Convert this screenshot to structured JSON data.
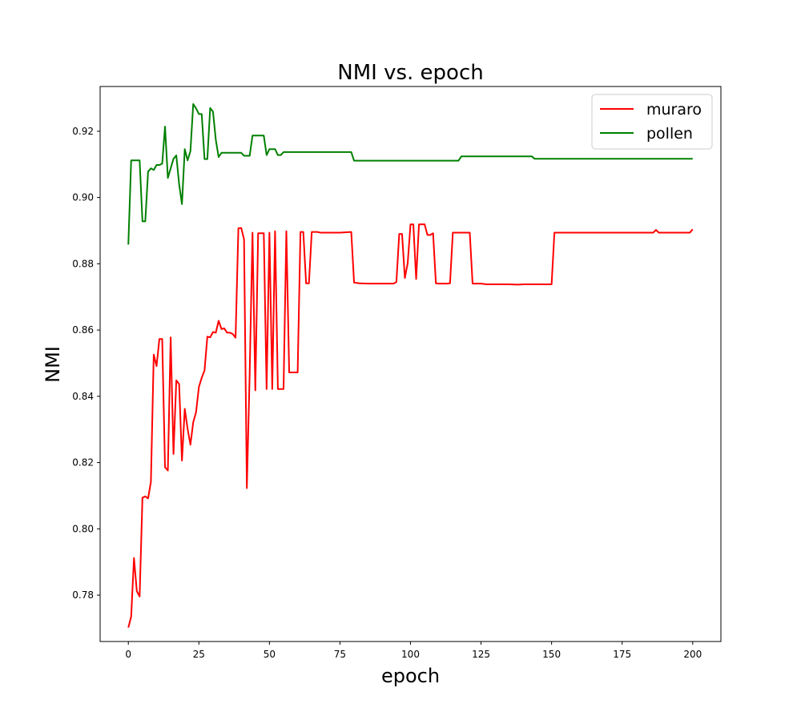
{
  "chart_data": {
    "type": "line",
    "title": "NMI vs. epoch",
    "xlabel": "epoch",
    "ylabel": "NMI",
    "xlim": [
      -10,
      210
    ],
    "ylim": [
      0.766,
      0.9335
    ],
    "x_ticks": [
      0,
      25,
      50,
      75,
      100,
      125,
      150,
      175,
      200
    ],
    "y_ticks": [
      0.78,
      0.8,
      0.82,
      0.84,
      0.86,
      0.88,
      0.9,
      0.92
    ],
    "y_tick_labels": [
      "0.78",
      "0.80",
      "0.82",
      "0.84",
      "0.86",
      "0.88",
      "0.90",
      "0.92"
    ],
    "grid": false,
    "legend_position": "top-right",
    "series": [
      {
        "name": "muraro",
        "color": "#ff0000",
        "points": [
          [
            0,
            0.7702
          ],
          [
            1,
            0.7735
          ],
          [
            2,
            0.7912
          ],
          [
            3,
            0.7812
          ],
          [
            4,
            0.7796
          ],
          [
            5,
            0.8094
          ],
          [
            6,
            0.8098
          ],
          [
            7,
            0.8092
          ],
          [
            8,
            0.8142
          ],
          [
            9,
            0.8526
          ],
          [
            10,
            0.8491
          ],
          [
            11,
            0.8573
          ],
          [
            12,
            0.8573
          ],
          [
            13,
            0.8186
          ],
          [
            14,
            0.8176
          ],
          [
            15,
            0.8578
          ],
          [
            16,
            0.8226
          ],
          [
            17,
            0.8448
          ],
          [
            18,
            0.8437
          ],
          [
            19,
            0.8206
          ],
          [
            20,
            0.8362
          ],
          [
            21,
            0.8302
          ],
          [
            22,
            0.8254
          ],
          [
            23,
            0.8322
          ],
          [
            24,
            0.8352
          ],
          [
            25,
            0.8428
          ],
          [
            26,
            0.8456
          ],
          [
            27,
            0.8478
          ],
          [
            28,
            0.858
          ],
          [
            29,
            0.8578
          ],
          [
            30,
            0.8594
          ],
          [
            31,
            0.8592
          ],
          [
            32,
            0.8628
          ],
          [
            33,
            0.8603
          ],
          [
            34,
            0.8605
          ],
          [
            35,
            0.8592
          ],
          [
            36,
            0.8592
          ],
          [
            37,
            0.8588
          ],
          [
            38,
            0.8577
          ],
          [
            39,
            0.8907
          ],
          [
            40,
            0.8908
          ],
          [
            41,
            0.8874
          ],
          [
            42,
            0.8123
          ],
          [
            43,
            0.8468
          ],
          [
            44,
            0.8894
          ],
          [
            45,
            0.8418
          ],
          [
            46,
            0.8892
          ],
          [
            47,
            0.8892
          ],
          [
            48,
            0.8892
          ],
          [
            49,
            0.8422
          ],
          [
            50,
            0.8894
          ],
          [
            51,
            0.8422
          ],
          [
            52,
            0.8898
          ],
          [
            53,
            0.8422
          ],
          [
            54,
            0.8422
          ],
          [
            55,
            0.8422
          ],
          [
            56,
            0.8898
          ],
          [
            57,
            0.8472
          ],
          [
            58,
            0.8472
          ],
          [
            59,
            0.8472
          ],
          [
            60,
            0.8472
          ],
          [
            61,
            0.8896
          ],
          [
            62,
            0.8896
          ],
          [
            63,
            0.8741
          ],
          [
            64,
            0.8741
          ],
          [
            65,
            0.8896
          ],
          [
            66,
            0.8896
          ],
          [
            67,
            0.8896
          ],
          [
            68,
            0.8894
          ],
          [
            70,
            0.8894
          ],
          [
            75,
            0.8894
          ],
          [
            79,
            0.8896
          ],
          [
            80,
            0.8743
          ],
          [
            82,
            0.8741
          ],
          [
            85,
            0.874
          ],
          [
            90,
            0.874
          ],
          [
            94,
            0.874
          ],
          [
            95,
            0.8745
          ],
          [
            96,
            0.889
          ],
          [
            97,
            0.889
          ],
          [
            98,
            0.8757
          ],
          [
            99,
            0.8802
          ],
          [
            100,
            0.8919
          ],
          [
            101,
            0.8919
          ],
          [
            102,
            0.8754
          ],
          [
            103,
            0.8919
          ],
          [
            104,
            0.8919
          ],
          [
            105,
            0.8919
          ],
          [
            106,
            0.8887
          ],
          [
            107,
            0.8887
          ],
          [
            108,
            0.8892
          ],
          [
            109,
            0.8741
          ],
          [
            110,
            0.874
          ],
          [
            113,
            0.874
          ],
          [
            114,
            0.8741
          ],
          [
            115,
            0.8894
          ],
          [
            120,
            0.8894
          ],
          [
            121,
            0.8894
          ],
          [
            122,
            0.874
          ],
          [
            125,
            0.874
          ],
          [
            127,
            0.8738
          ],
          [
            130,
            0.8738
          ],
          [
            135,
            0.8738
          ],
          [
            138,
            0.8737
          ],
          [
            140,
            0.8738
          ],
          [
            145,
            0.8738
          ],
          [
            150,
            0.8738
          ],
          [
            151,
            0.8894
          ],
          [
            155,
            0.8894
          ],
          [
            160,
            0.8894
          ],
          [
            170,
            0.8894
          ],
          [
            180,
            0.8894
          ],
          [
            186,
            0.8894
          ],
          [
            187,
            0.8902
          ],
          [
            188,
            0.8894
          ],
          [
            190,
            0.8894
          ],
          [
            199,
            0.8894
          ],
          [
            200,
            0.8904
          ]
        ]
      },
      {
        "name": "pollen",
        "color": "#008000",
        "points": [
          [
            0,
            0.8858
          ],
          [
            1,
            0.9112
          ],
          [
            2,
            0.9112
          ],
          [
            3,
            0.9112
          ],
          [
            4,
            0.9112
          ],
          [
            5,
            0.8928
          ],
          [
            6,
            0.8928
          ],
          [
            7,
            0.9078
          ],
          [
            8,
            0.9088
          ],
          [
            9,
            0.9083
          ],
          [
            10,
            0.9098
          ],
          [
            11,
            0.9098
          ],
          [
            12,
            0.9102
          ],
          [
            13,
            0.9214
          ],
          [
            14,
            0.9059
          ],
          [
            15,
            0.9088
          ],
          [
            16,
            0.9117
          ],
          [
            17,
            0.9127
          ],
          [
            18,
            0.904
          ],
          [
            19,
            0.898
          ],
          [
            20,
            0.9146
          ],
          [
            21,
            0.9112
          ],
          [
            22,
            0.914
          ],
          [
            23,
            0.9282
          ],
          [
            24,
            0.9269
          ],
          [
            25,
            0.9252
          ],
          [
            26,
            0.9252
          ],
          [
            27,
            0.9116
          ],
          [
            28,
            0.9116
          ],
          [
            29,
            0.927
          ],
          [
            30,
            0.9259
          ],
          [
            31,
            0.9174
          ],
          [
            32,
            0.9122
          ],
          [
            33,
            0.9135
          ],
          [
            34,
            0.9135
          ],
          [
            35,
            0.9135
          ],
          [
            38,
            0.9135
          ],
          [
            40,
            0.9135
          ],
          [
            41,
            0.9126
          ],
          [
            42,
            0.9126
          ],
          [
            43,
            0.9126
          ],
          [
            44,
            0.9187
          ],
          [
            46,
            0.9187
          ],
          [
            48,
            0.9187
          ],
          [
            49,
            0.9128
          ],
          [
            50,
            0.9146
          ],
          [
            52,
            0.9146
          ],
          [
            53,
            0.9128
          ],
          [
            54,
            0.9128
          ],
          [
            55,
            0.9137
          ],
          [
            57,
            0.9137
          ],
          [
            60,
            0.9137
          ],
          [
            70,
            0.9137
          ],
          [
            79,
            0.9137
          ],
          [
            80,
            0.9111
          ],
          [
            85,
            0.9111
          ],
          [
            90,
            0.9111
          ],
          [
            100,
            0.9111
          ],
          [
            110,
            0.9111
          ],
          [
            117,
            0.9111
          ],
          [
            118,
            0.9124
          ],
          [
            120,
            0.9124
          ],
          [
            130,
            0.9124
          ],
          [
            140,
            0.9124
          ],
          [
            143,
            0.9124
          ],
          [
            144,
            0.9117
          ],
          [
            150,
            0.9117
          ],
          [
            160,
            0.9117
          ],
          [
            170,
            0.9117
          ],
          [
            180,
            0.9117
          ],
          [
            190,
            0.9117
          ],
          [
            200,
            0.9117
          ]
        ]
      }
    ]
  }
}
